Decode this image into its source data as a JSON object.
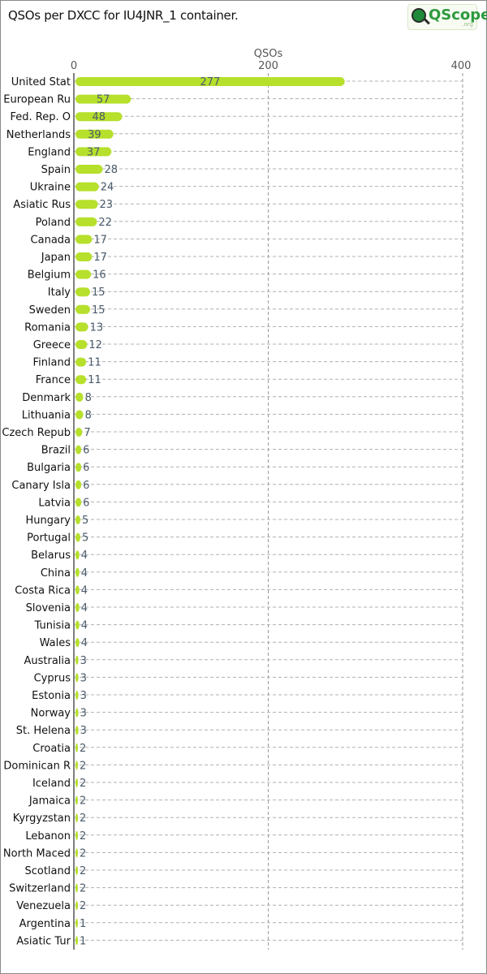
{
  "header": {
    "title": "QSOs per DXCC for IU4JNR_1 container.",
    "logo_text": "QScope",
    "logo_sub": ".org"
  },
  "colors": {
    "bar": "#b6e02b",
    "grid": "#9a9a9a",
    "axis": "#555555",
    "value_text": "#4a5a6a",
    "label_text": "#111111"
  },
  "chart_data": {
    "type": "bar",
    "orientation": "horizontal",
    "title": "QSOs per DXCC for IU4JNR_1 container.",
    "xlabel": "QSOs",
    "ylabel": "",
    "xlim": [
      0,
      400
    ],
    "xticks": [
      0,
      200,
      400
    ],
    "grid": true,
    "categories": [
      "United Stat",
      "European Ru",
      "Fed. Rep. O",
      "Netherlands",
      "England",
      "Spain",
      "Ukraine",
      "Asiatic Rus",
      "Poland",
      "Canada",
      "Japan",
      "Belgium",
      "Italy",
      "Sweden",
      "Romania",
      "Greece",
      "Finland",
      "France",
      "Denmark",
      "Lithuania",
      "Czech Repub",
      "Brazil",
      "Bulgaria",
      "Canary Isla",
      "Latvia",
      "Hungary",
      "Portugal",
      "Belarus",
      "China",
      "Costa Rica",
      "Slovenia",
      "Tunisia",
      "Wales",
      "Australia",
      "Cyprus",
      "Estonia",
      "Norway",
      "St. Helena",
      "Croatia",
      "Dominican R",
      "Iceland",
      "Jamaica",
      "Kyrgyzstan",
      "Lebanon",
      "North Maced",
      "Scotland",
      "Switzerland",
      "Venezuela",
      "Argentina",
      "Asiatic Tur"
    ],
    "values": [
      277,
      57,
      48,
      39,
      37,
      28,
      24,
      23,
      22,
      17,
      17,
      16,
      15,
      15,
      13,
      12,
      11,
      11,
      8,
      8,
      7,
      6,
      6,
      6,
      6,
      5,
      5,
      4,
      4,
      4,
      4,
      4,
      4,
      3,
      3,
      3,
      3,
      3,
      2,
      2,
      2,
      2,
      2,
      2,
      2,
      2,
      2,
      2,
      1,
      1
    ]
  }
}
